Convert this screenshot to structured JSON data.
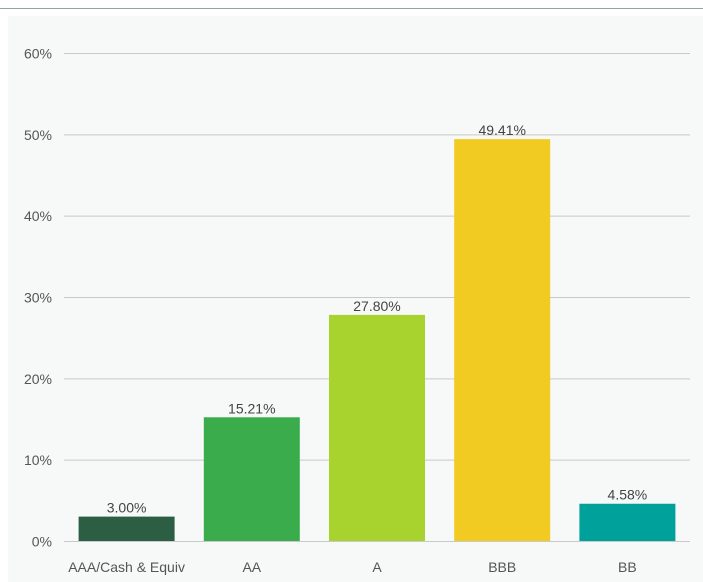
{
  "chart_data": {
    "type": "bar",
    "title": "",
    "xlabel": "",
    "ylabel": "",
    "ylim": [
      0,
      60
    ],
    "yticks": [
      0,
      10,
      20,
      30,
      40,
      50,
      60
    ],
    "ytick_labels": [
      "0%",
      "10%",
      "20%",
      "30%",
      "40%",
      "50%",
      "60%"
    ],
    "grid": true,
    "legend": "none",
    "categories": [
      "AAA/Cash & Equiv",
      "AA",
      "A",
      "BBB",
      "BB"
    ],
    "values": [
      3.0,
      15.21,
      27.8,
      49.41,
      4.58
    ],
    "data_labels": [
      "3.00%",
      "15.21%",
      "27.80%",
      "49.41%",
      "4.58%"
    ],
    "colors": [
      "#2c5e44",
      "#3aac4c",
      "#a8d22e",
      "#f1cb22",
      "#00a19b"
    ]
  }
}
